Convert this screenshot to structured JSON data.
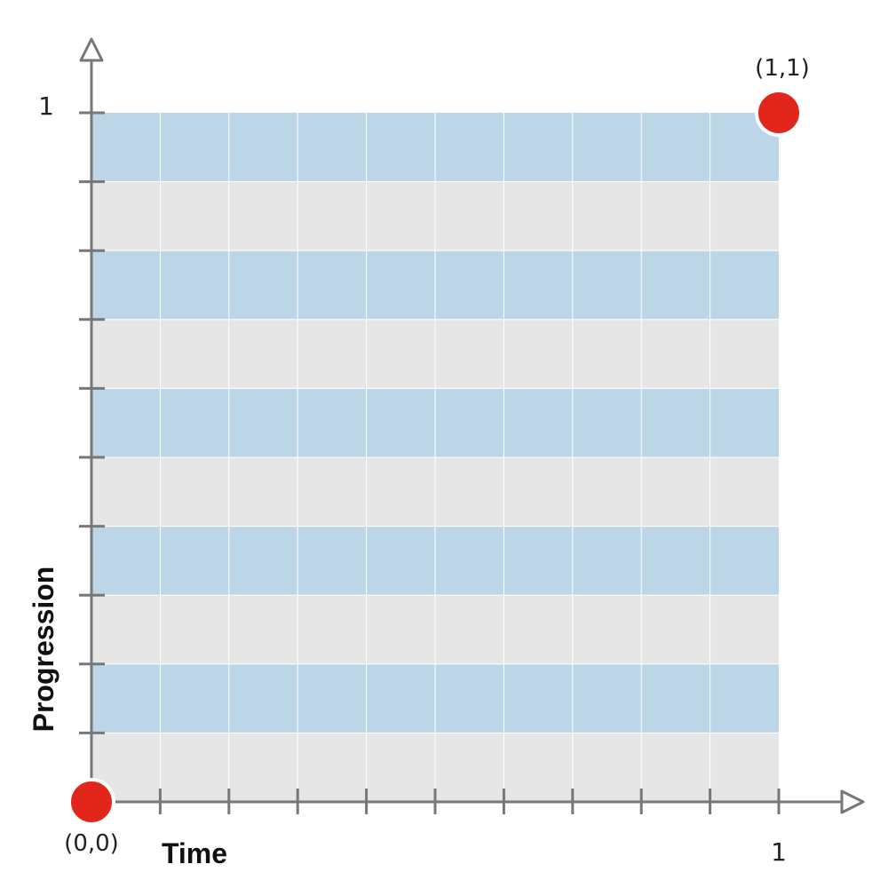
{
  "axes": {
    "x_label": "Time",
    "y_label": "Progression",
    "x_max_label": "1",
    "y_max_label": "1",
    "tick_count": 10
  },
  "points": [
    {
      "name": "origin",
      "label": "(0,0)",
      "x": 0,
      "y": 0
    },
    {
      "name": "end",
      "label": "(1,1)",
      "x": 1,
      "y": 1
    }
  ],
  "colors": {
    "band_blue": "#bcd6e7",
    "band_gray": "#e6e6e6",
    "axis": "#777777",
    "grid_line": "#ffffff",
    "point": "#e3261b"
  }
}
